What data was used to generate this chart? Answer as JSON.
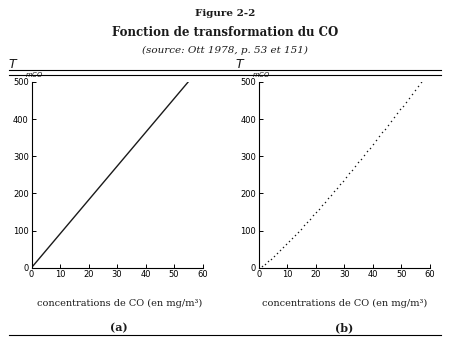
{
  "title_line1": "Figure 2-2",
  "title_line2": "Fonction de transformation du CO",
  "title_line3": "(source: Ott 1978, p. 53 et 151)",
  "xlabel": "concentrations de CO (en mg/m³)",
  "xlim": [
    0,
    60
  ],
  "ylim": [
    0,
    500
  ],
  "xticks": [
    0,
    10,
    20,
    30,
    40,
    50,
    60
  ],
  "yticks": [
    0,
    100,
    200,
    300,
    400,
    500
  ],
  "label_a": "(a)",
  "label_b": "(b)",
  "background_color": "#ffffff",
  "line_color": "#1a1a1a",
  "font_color": "#1a1a1a",
  "b_exponent": 1.15,
  "linear_slope": 9.09
}
